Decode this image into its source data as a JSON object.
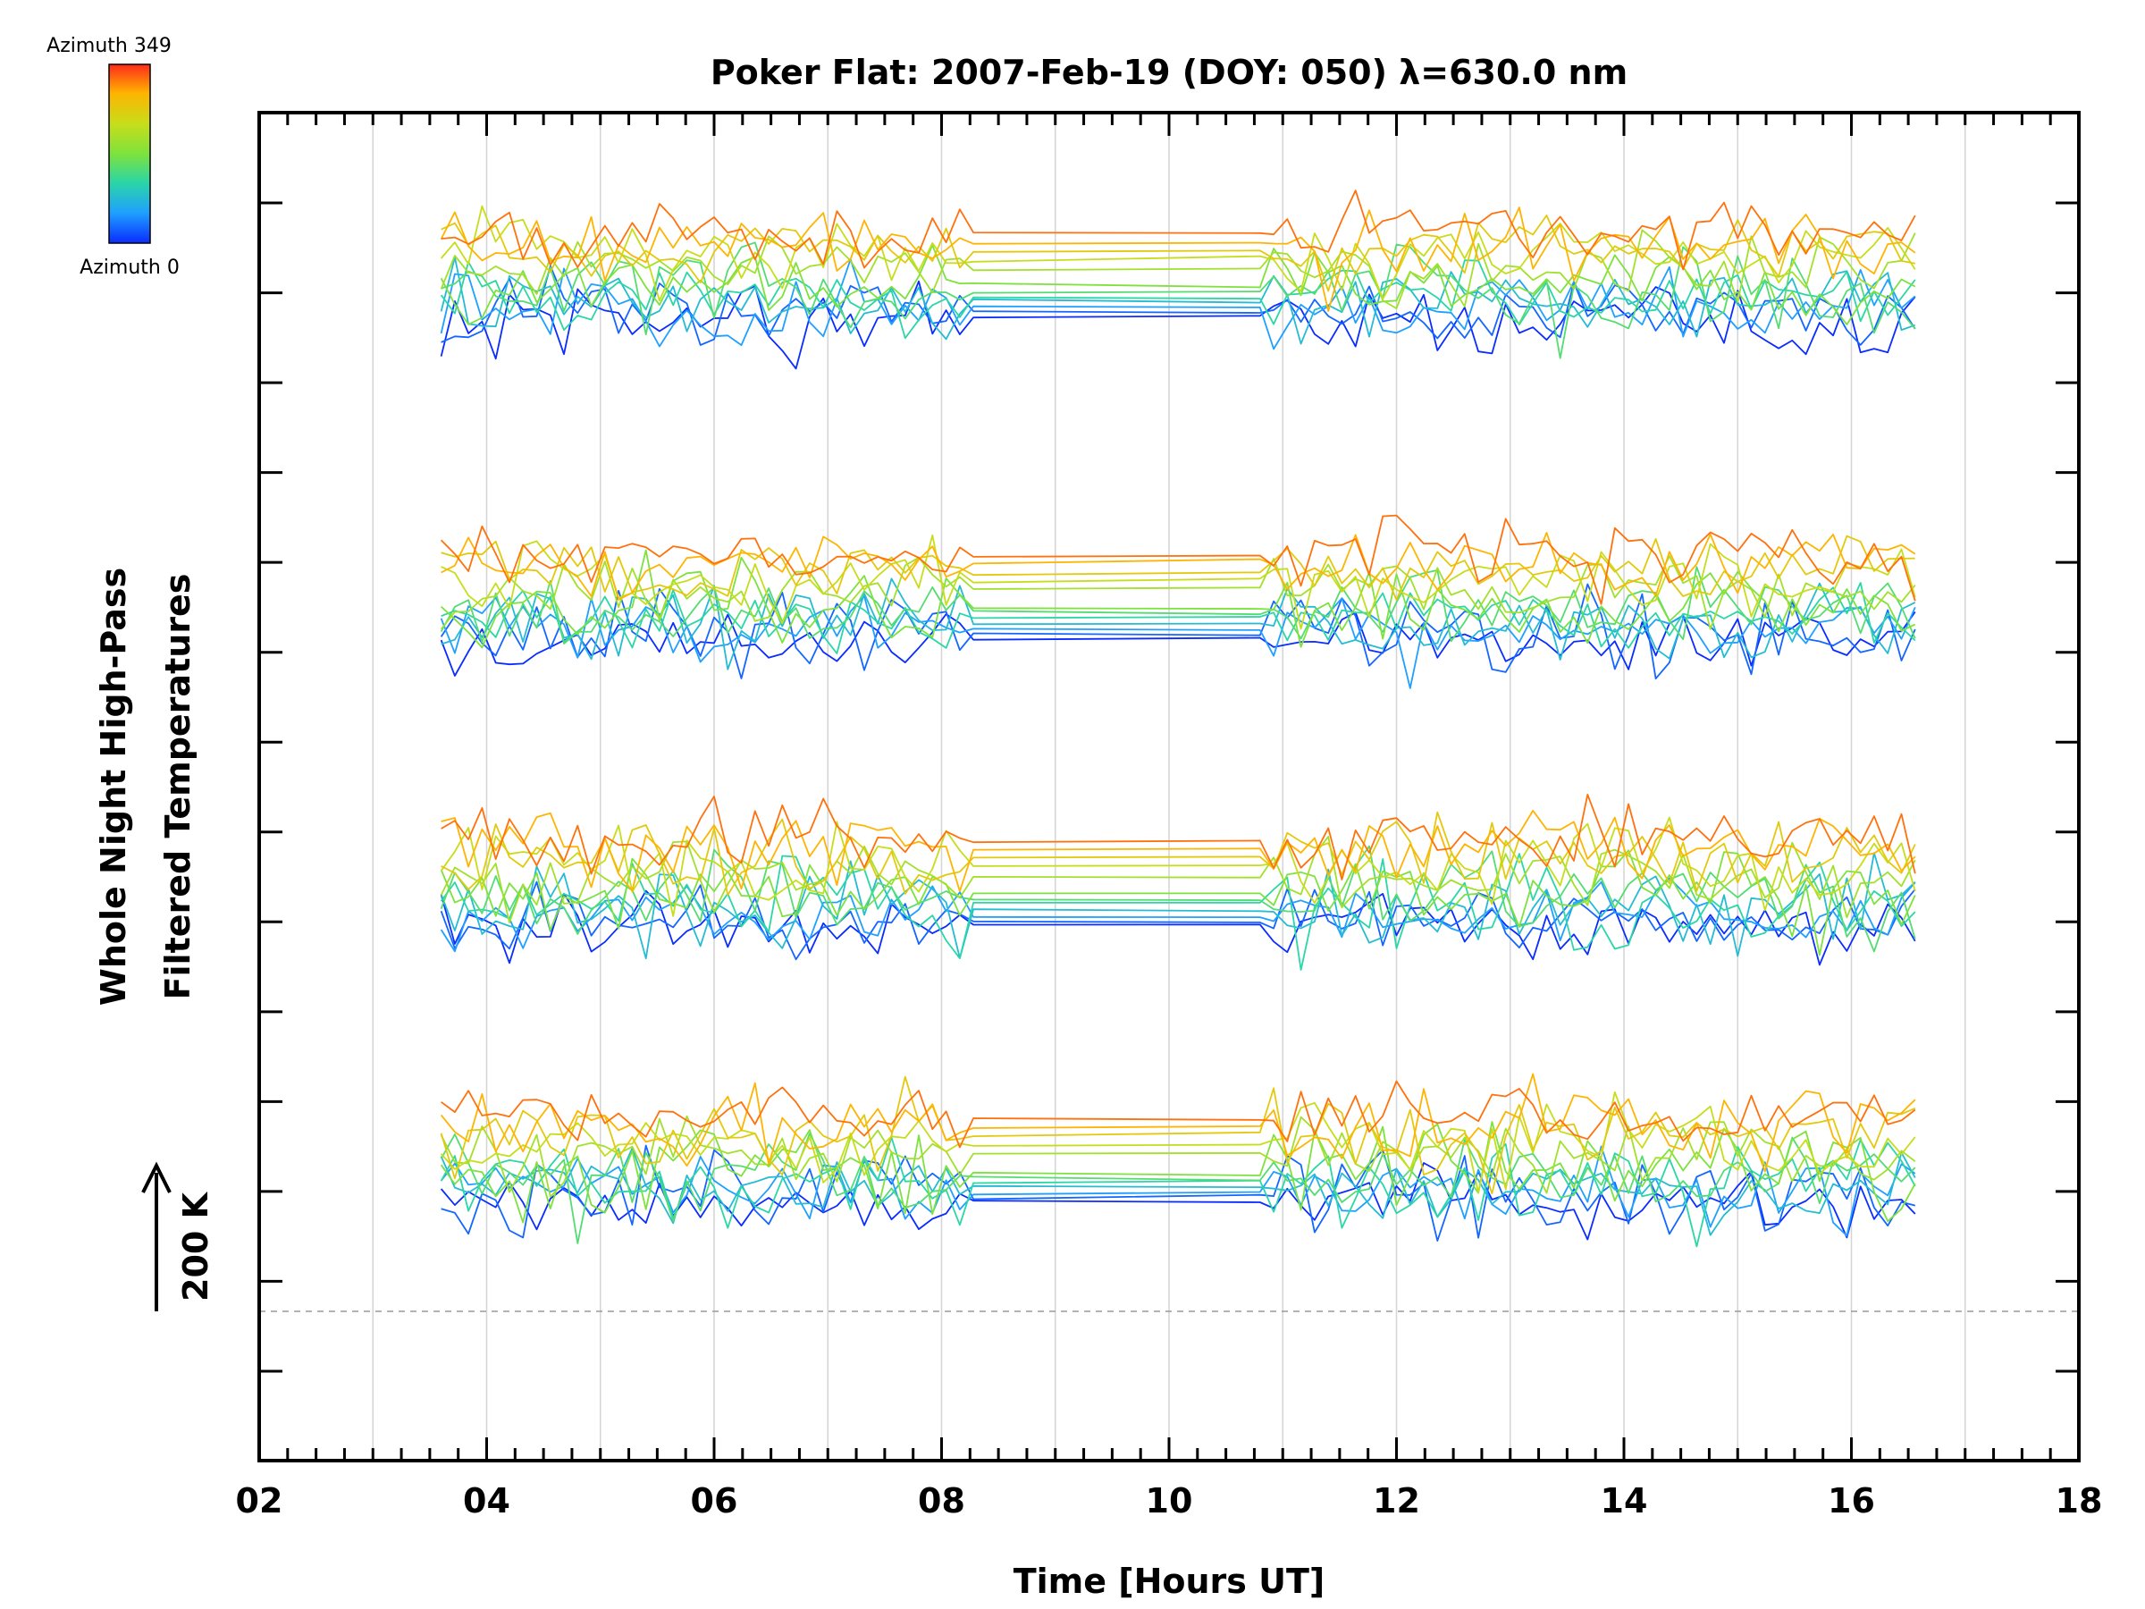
{
  "chart_data": {
    "type": "line",
    "title": "Poker Flat: 2007-Feb-19 (DOY: 050) λ=630.0 nm",
    "xlabel": "Time [Hours UT]",
    "ylabel_line1": "Whole Night High-Pass",
    "ylabel_line2": "Filtered Temperatures",
    "scale_bar_label": "200 K",
    "xlim": [
      2,
      18
    ],
    "x_tick_labels": [
      "02",
      "04",
      "06",
      "08",
      "10",
      "12",
      "14",
      "16",
      "18"
    ],
    "x_tick_values": [
      2,
      4,
      6,
      8,
      10,
      12,
      14,
      16,
      18
    ],
    "legend": {
      "top_label": "Azimuth 349",
      "bottom_label": "Azimuth 0",
      "colormap": [
        "#0a2cff",
        "#1fa0ff",
        "#2bd6a6",
        "#7ee23c",
        "#c8dd1a",
        "#ffb300",
        "#ff2a1a"
      ]
    },
    "grid": "vertical-hourly",
    "baseline_dashed": true,
    "series_notes": "48 offset high-pass filtered temperature traces (one per zenith/azimuth look direction), spanning ~03.6 to ~16.6 UT with a data gap ~08.3 to ~10.8 UT; traces stacked vertically in groups, colour-coded by azimuth from 0 (blue) to 349 (red).",
    "time_range": [
      3.6,
      16.6
    ],
    "gap_range": [
      8.3,
      10.8
    ],
    "trace_count": 48
  }
}
